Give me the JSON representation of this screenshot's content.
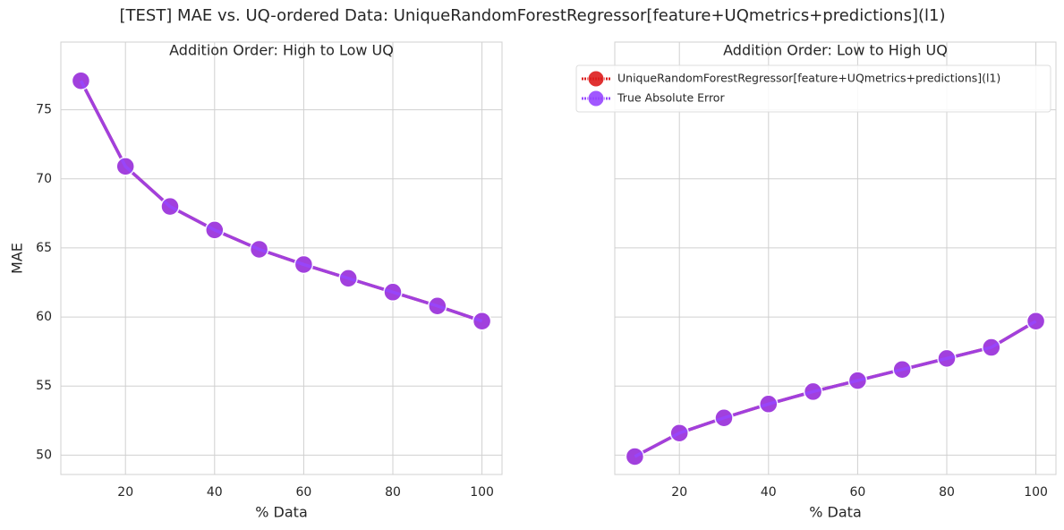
{
  "title": "[TEST] MAE vs. UQ-ordered Data: UniqueRandomForestRegressor[feature+UQmetrics+predictions](l1)",
  "chart_data": [
    {
      "type": "line",
      "title": "Addition Order: High to Low UQ",
      "xlabel": "% Data",
      "ylabel": "MAE",
      "x": [
        10,
        20,
        30,
        40,
        50,
        60,
        70,
        80,
        90,
        100
      ],
      "series": [
        {
          "color": "#dd1c1c",
          "values": [
            77.1,
            70.9,
            68.0,
            66.3,
            64.9,
            63.8,
            62.8,
            61.8,
            60.8,
            59.7
          ]
        },
        {
          "color": "#9747ff",
          "values": [
            77.1,
            70.9,
            68.0,
            66.3,
            64.9,
            63.8,
            62.8,
            61.8,
            60.8,
            59.7
          ]
        }
      ],
      "xlim": [
        5.5,
        104.5
      ],
      "xticks": [
        20,
        40,
        60,
        80,
        100
      ],
      "ylim": [
        48.6,
        79.9
      ],
      "yticks": [
        50,
        55,
        60,
        65,
        70,
        75
      ],
      "ytick_labels": true,
      "grid": true
    },
    {
      "type": "line",
      "title": "Addition Order: Low to High UQ",
      "xlabel": "% Data",
      "x": [
        10,
        20,
        30,
        40,
        50,
        60,
        70,
        80,
        90,
        100
      ],
      "series": [
        {
          "name": "UniqueRandomForestRegressor[feature+UQmetrics+predictions](l1)",
          "color": "#dd1c1c",
          "values": [
            49.9,
            51.6,
            52.7,
            53.7,
            54.6,
            55.4,
            56.2,
            57.0,
            57.8,
            59.7
          ]
        },
        {
          "name": "True Absolute Error",
          "color": "#9747ff",
          "values": [
            49.9,
            51.6,
            52.7,
            53.7,
            54.6,
            55.4,
            56.2,
            57.0,
            57.8,
            59.7
          ]
        }
      ],
      "xlim": [
        5.5,
        104.5
      ],
      "xticks": [
        20,
        40,
        60,
        80,
        100
      ],
      "ylim": [
        48.6,
        79.9
      ],
      "yticks": [
        50,
        55,
        60,
        65,
        70,
        75
      ],
      "ytick_labels": false,
      "grid": true,
      "legend": "upper right"
    }
  ]
}
